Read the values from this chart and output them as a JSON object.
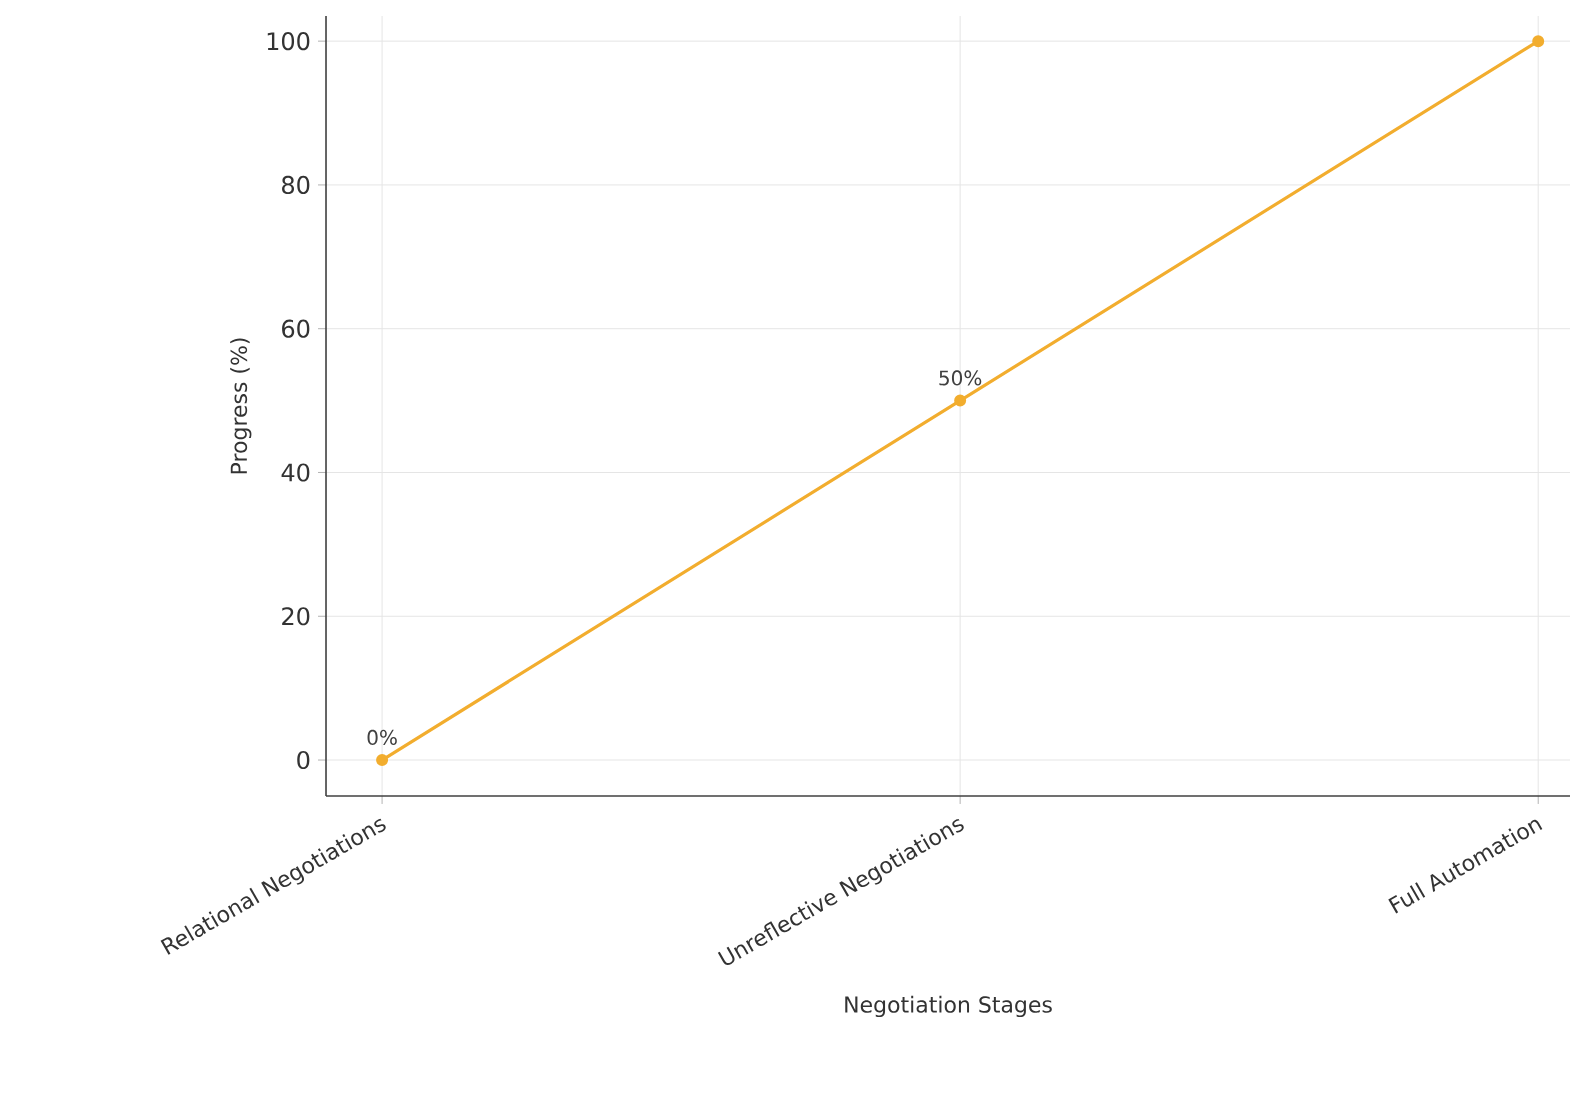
{
  "chart_data": {
    "type": "line",
    "xlabel": "Negotiation Stages",
    "ylabel": "Progress (%)",
    "categories": [
      "Relational Negotiations",
      "Unreflective Negotiations",
      "Full Automation"
    ],
    "series": [
      {
        "color": "#f2ad2e",
        "values": [
          0,
          50,
          100
        ],
        "value_labels": [
          "0%",
          "50%",
          null
        ]
      }
    ],
    "ylim": [
      -5,
      103.5
    ],
    "yticks": [
      0,
      20,
      40,
      60,
      80,
      100
    ],
    "grid": true,
    "marker": "circle",
    "line_style": "solid"
  }
}
